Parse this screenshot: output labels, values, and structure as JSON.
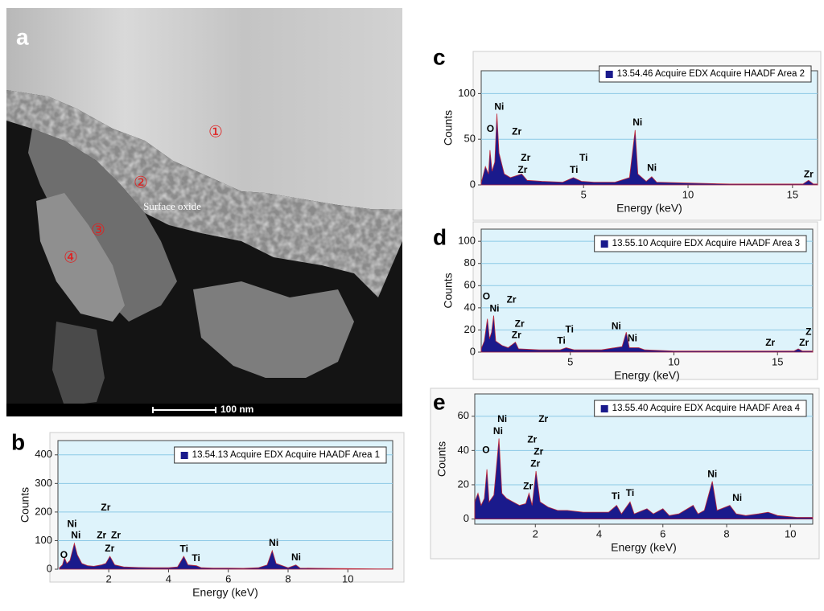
{
  "image": {
    "label": "a",
    "regions": [
      "①",
      "②",
      "③",
      "④"
    ],
    "annotation": "Surface oxide",
    "scale_bar": "100 nm"
  },
  "chart_data": [
    {
      "type": "area",
      "label": "b",
      "x_label": "Energy (keV)",
      "y_label": "Counts",
      "xlim": [
        0.3,
        11.5
      ],
      "xticks": [
        2,
        4,
        6,
        8,
        10
      ],
      "ylim": [
        0,
        450
      ],
      "yticks": [
        0,
        100,
        200,
        300,
        400
      ],
      "grid": true,
      "x": [
        0.35,
        0.45,
        0.52,
        0.6,
        0.7,
        0.85,
        0.95,
        1.1,
        1.3,
        1.5,
        1.75,
        1.9,
        2.04,
        2.2,
        2.5,
        3.0,
        3.5,
        4.0,
        4.3,
        4.51,
        4.65,
        4.93,
        5.1,
        5.5,
        6.0,
        6.5,
        7.0,
        7.3,
        7.47,
        7.6,
        8.0,
        8.26,
        8.4,
        9.0,
        10,
        11,
        11.5
      ],
      "series": [
        {
          "name": "13.54.13 Acquire EDX Acquire HAADF Area 1",
          "color": "#1a1a8c",
          "values": [
            5,
            15,
            40,
            20,
            30,
            90,
            50,
            20,
            12,
            10,
            15,
            20,
            45,
            15,
            8,
            6,
            5,
            5,
            8,
            45,
            15,
            12,
            5,
            4,
            4,
            3,
            5,
            15,
            65,
            20,
            5,
            15,
            4,
            3,
            2,
            1,
            1
          ]
        }
      ],
      "annotations": [
        {
          "text": "O",
          "x": 0.5,
          "y": 48
        },
        {
          "text": "Ni",
          "x": 0.77,
          "y": 157
        },
        {
          "text": "Ni",
          "x": 0.9,
          "y": 117
        },
        {
          "text": "Zr",
          "x": 1.9,
          "y": 214
        },
        {
          "text": "Zr",
          "x": 1.76,
          "y": 117
        },
        {
          "text": "Zr",
          "x": 2.24,
          "y": 117
        },
        {
          "text": "Zr",
          "x": 2.03,
          "y": 71
        },
        {
          "text": "Ti",
          "x": 4.52,
          "y": 69
        },
        {
          "text": "Ti",
          "x": 4.92,
          "y": 37
        },
        {
          "text": "Ni",
          "x": 7.52,
          "y": 91
        },
        {
          "text": "Ni",
          "x": 8.27,
          "y": 40
        }
      ]
    },
    {
      "type": "area",
      "label": "c",
      "x_label": "Energy (keV)",
      "y_label": "Counts",
      "xlim": [
        0.1,
        16.2
      ],
      "xticks": [
        5,
        10,
        15
      ],
      "ylim": [
        0,
        125
      ],
      "yticks": [
        0,
        50,
        100
      ],
      "grid": true,
      "x": [
        0.1,
        0.3,
        0.45,
        0.52,
        0.62,
        0.75,
        0.85,
        0.95,
        1.2,
        1.5,
        2.04,
        2.3,
        3,
        4,
        4.51,
        4.9,
        5.5,
        6.5,
        7.2,
        7.47,
        7.6,
        8.0,
        8.26,
        8.5,
        10,
        12,
        14,
        15.5,
        15.77,
        16,
        16.2
      ],
      "series": [
        {
          "name": "13.54.46 Acquire EDX Acquire HAADF Area 2",
          "color": "#1a1a8c",
          "values": [
            2,
            20,
            12,
            38,
            15,
            25,
            78,
            35,
            12,
            8,
            12,
            5,
            4,
            3,
            8,
            4,
            3,
            3,
            8,
            60,
            12,
            4,
            9,
            3,
            2,
            1,
            1,
            1,
            5,
            1,
            1
          ]
        }
      ],
      "annotations": [
        {
          "text": "Ni",
          "x": 0.96,
          "y": 85
        },
        {
          "text": "O",
          "x": 0.54,
          "y": 61
        },
        {
          "text": "Zr",
          "x": 1.8,
          "y": 58
        },
        {
          "text": "Zr",
          "x": 2.23,
          "y": 29
        },
        {
          "text": "Zr",
          "x": 2.08,
          "y": 16
        },
        {
          "text": "Ti",
          "x": 5.0,
          "y": 29
        },
        {
          "text": "Ti",
          "x": 4.54,
          "y": 16
        },
        {
          "text": "Ni",
          "x": 7.58,
          "y": 68
        },
        {
          "text": "Ni",
          "x": 8.27,
          "y": 18
        },
        {
          "text": "Zr",
          "x": 15.77,
          "y": 11
        }
      ]
    },
    {
      "type": "area",
      "label": "d",
      "x_label": "Energy (keV)",
      "y_label": "Counts",
      "xlim": [
        0.7,
        16.7
      ],
      "xticks": [
        5,
        10,
        15
      ],
      "ylim": [
        0,
        111
      ],
      "yticks": [
        0,
        20,
        40,
        60,
        80,
        100
      ],
      "grid": true,
      "x": [
        0.7,
        0.85,
        1.0,
        1.1,
        1.2,
        1.3,
        1.4,
        1.7,
        2.0,
        2.35,
        2.5,
        3.5,
        4.5,
        4.8,
        5.2,
        6.5,
        7.5,
        7.7,
        7.85,
        8.3,
        8.6,
        10,
        15.8,
        16.0,
        16.2,
        16.7
      ],
      "series": [
        {
          "name": "13.55.10 Acquire EDX Acquire HAADF Area 3",
          "color": "#1a1a8c",
          "values": [
            3,
            10,
            30,
            12,
            18,
            33,
            10,
            6,
            4,
            9,
            3,
            2,
            2,
            4,
            2,
            2,
            5,
            18,
            4,
            4,
            2,
            1,
            1,
            3,
            1,
            1
          ]
        }
      ],
      "annotations": [
        {
          "text": "O",
          "x": 0.95,
          "y": 50
        },
        {
          "text": "Ni",
          "x": 1.34,
          "y": 39
        },
        {
          "text": "Zr",
          "x": 2.16,
          "y": 47
        },
        {
          "text": "Zr",
          "x": 2.55,
          "y": 25
        },
        {
          "text": "Zr",
          "x": 2.4,
          "y": 15
        },
        {
          "text": "Ti",
          "x": 4.96,
          "y": 20
        },
        {
          "text": "Ti",
          "x": 4.57,
          "y": 10
        },
        {
          "text": "Ni",
          "x": 7.22,
          "y": 23
        },
        {
          "text": "Ni",
          "x": 8.0,
          "y": 12
        },
        {
          "text": "Zr",
          "x": 14.65,
          "y": 8
        },
        {
          "text": "Zr",
          "x": 16.28,
          "y": 8
        },
        {
          "text": "Z",
          "x": 16.5,
          "y": 18
        }
      ]
    },
    {
      "type": "area",
      "label": "e",
      "x_label": "Energy (keV)",
      "y_label": "Counts",
      "xlim": [
        0.1,
        10.7
      ],
      "xticks": [
        2,
        4,
        6,
        8,
        10
      ],
      "ylim": [
        -3,
        73
      ],
      "yticks": [
        0,
        20,
        40,
        60
      ],
      "grid": true,
      "x": [
        0.1,
        0.2,
        0.3,
        0.4,
        0.48,
        0.55,
        0.7,
        0.86,
        0.95,
        1.1,
        1.3,
        1.5,
        1.7,
        1.8,
        1.9,
        2.02,
        2.15,
        2.4,
        2.7,
        3.0,
        3.5,
        4.0,
        4.3,
        4.55,
        4.7,
        4.97,
        5.1,
        5.5,
        5.7,
        6.0,
        6.2,
        6.5,
        6.95,
        7.1,
        7.3,
        7.55,
        7.7,
        8.1,
        8.3,
        8.6,
        9.0,
        9.3,
        9.6,
        10.2,
        10.7
      ],
      "series": [
        {
          "name": "13.55.40 Acquire EDX Acquire HAADF Area 4",
          "color": "#1a1a8c",
          "values": [
            10,
            15,
            8,
            12,
            29,
            10,
            14,
            47,
            15,
            12,
            10,
            8,
            9,
            15,
            8,
            28,
            10,
            7,
            5,
            5,
            4,
            4,
            4,
            8,
            3,
            10,
            3,
            6,
            3,
            6,
            2,
            3,
            8,
            3,
            5,
            22,
            5,
            8,
            3,
            2,
            3,
            4,
            2,
            1,
            1
          ]
        }
      ],
      "annotations": [
        {
          "text": "O",
          "x": 0.45,
          "y": 40
        },
        {
          "text": "Ni",
          "x": 0.83,
          "y": 51
        },
        {
          "text": "Ni",
          "x": 0.96,
          "y": 58
        },
        {
          "text": "Zr",
          "x": 2.25,
          "y": 58
        },
        {
          "text": "Zr",
          "x": 1.9,
          "y": 46
        },
        {
          "text": "Zr",
          "x": 2.1,
          "y": 39
        },
        {
          "text": "Zr",
          "x": 2.0,
          "y": 32
        },
        {
          "text": "Zr",
          "x": 1.77,
          "y": 19
        },
        {
          "text": "Ti",
          "x": 4.52,
          "y": 13
        },
        {
          "text": "Ti",
          "x": 4.97,
          "y": 15
        },
        {
          "text": "Ni",
          "x": 7.55,
          "y": 26
        },
        {
          "text": "Ni",
          "x": 8.33,
          "y": 12
        }
      ]
    }
  ]
}
